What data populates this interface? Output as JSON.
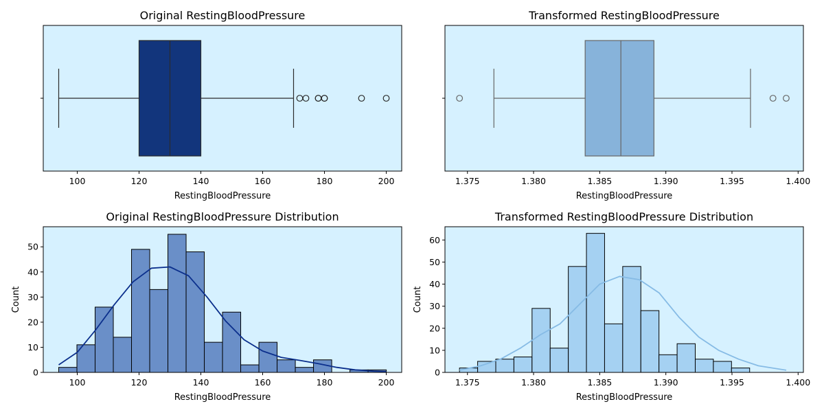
{
  "colors": {
    "panel_bg": "#d6f1ff",
    "original_box": "#12357c",
    "original_hist": "#6a8fc8",
    "original_kde": "#0b2f8c",
    "transformed_box": "#87b3da",
    "transformed_hist": "#a5d1f2",
    "transformed_kde": "#86bbe5"
  },
  "chart_data": [
    {
      "type": "box",
      "title": "Original RestingBloodPressure",
      "xlabel": "RestingBloodPressure",
      "xlim": [
        89,
        205
      ],
      "xticks": [
        100,
        120,
        140,
        160,
        180,
        200
      ],
      "xtick_labels": [
        "100",
        "120",
        "140",
        "160",
        "180",
        "200"
      ],
      "stats": {
        "whislo": 94,
        "q1": 120,
        "med": 130,
        "q3": 140,
        "whishi": 170
      },
      "outliers": [
        172,
        174,
        178,
        178,
        180,
        180,
        192,
        200
      ]
    },
    {
      "type": "box",
      "title": "Transformed RestingBloodPressure",
      "xlabel": "RestingBloodPressure",
      "xlim": [
        1.3733,
        1.4004
      ],
      "xticks": [
        1.375,
        1.38,
        1.385,
        1.39,
        1.395,
        1.4
      ],
      "xtick_labels": [
        "1.375",
        "1.380",
        "1.385",
        "1.390",
        "1.395",
        "1.400"
      ],
      "stats": {
        "whislo": 1.377,
        "q1": 1.3839,
        "med": 1.3866,
        "q3": 1.3891,
        "whishi": 1.3964
      },
      "outliers": [
        1.3744,
        1.3981,
        1.3991
      ]
    },
    {
      "type": "bar",
      "title": "Original RestingBloodPressure Distribution",
      "xlabel": "RestingBloodPressure",
      "ylabel": "Count",
      "xlim": [
        89,
        205
      ],
      "ylim": [
        0,
        58
      ],
      "xticks": [
        100,
        120,
        140,
        160,
        180,
        200
      ],
      "xtick_labels": [
        "100",
        "120",
        "140",
        "160",
        "180",
        "200"
      ],
      "yticks": [
        0,
        10,
        20,
        30,
        40,
        50
      ],
      "bin_start": 94,
      "bin_width": 5.89,
      "counts": [
        2,
        11,
        26,
        14,
        49,
        33,
        55,
        48,
        12,
        24,
        3,
        12,
        5,
        2,
        5,
        0,
        1,
        1
      ],
      "kde": {
        "x": [
          94,
          100,
          106,
          112,
          118,
          124,
          130,
          136,
          142,
          148,
          154,
          160,
          166,
          172,
          178,
          184,
          190,
          196,
          200
        ],
        "y": [
          3,
          8,
          17,
          27,
          36,
          41.5,
          42,
          38.5,
          30,
          20.5,
          13,
          8.5,
          6,
          4.8,
          3.5,
          2,
          1,
          0.5,
          0.3
        ]
      }
    },
    {
      "type": "bar",
      "title": "Transformed RestingBloodPressure Distribution",
      "xlabel": "RestingBloodPressure",
      "ylabel": "Count",
      "xlim": [
        1.3733,
        1.4004
      ],
      "ylim": [
        0,
        66
      ],
      "xticks": [
        1.375,
        1.38,
        1.385,
        1.39,
        1.395,
        1.4
      ],
      "xtick_labels": [
        "1.375",
        "1.380",
        "1.385",
        "1.390",
        "1.395",
        "1.400"
      ],
      "yticks": [
        0,
        10,
        20,
        30,
        40,
        50,
        60
      ],
      "bin_start": 1.3744,
      "bin_width": 0.001371,
      "counts": [
        2,
        5,
        6,
        7,
        29,
        11,
        48,
        63,
        22,
        48,
        28,
        8,
        13,
        6,
        5,
        2
      ],
      "kde": {
        "x": [
          1.3744,
          1.376,
          1.3775,
          1.379,
          1.3805,
          1.382,
          1.3835,
          1.385,
          1.3865,
          1.388,
          1.3895,
          1.391,
          1.3925,
          1.394,
          1.3955,
          1.397,
          1.3991
        ],
        "y": [
          1,
          3,
          6,
          11,
          17,
          22,
          31,
          40,
          43.5,
          42,
          36,
          25,
          16,
          10,
          6,
          3,
          1
        ]
      }
    }
  ]
}
